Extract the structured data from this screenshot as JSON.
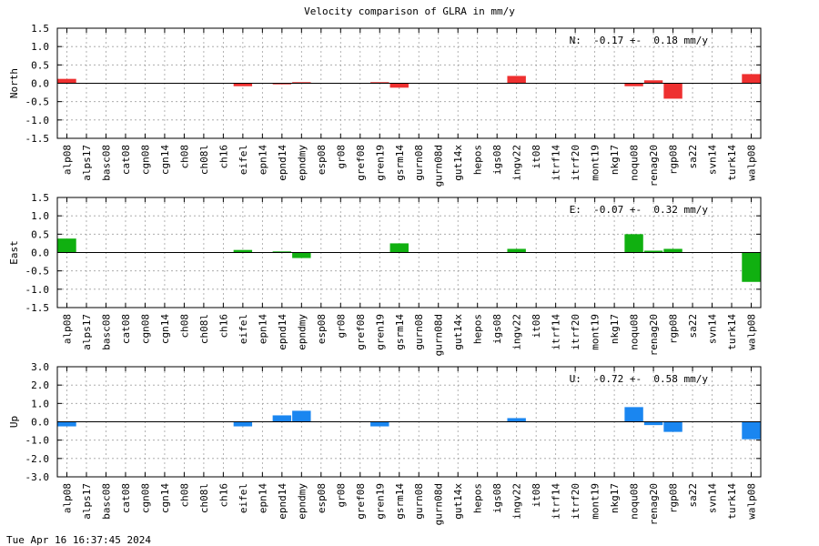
{
  "title": "Velocity comparison of GLRA in mm/y",
  "timestamp": "Tue Apr 16 16:37:45 2024",
  "chart_data": [
    {
      "type": "bar",
      "ylabel": "North",
      "annotation": "N:  -0.17 +-  0.18 mm/y",
      "color": "#ee3030",
      "ylim": [
        -1.5,
        1.5
      ],
      "yticks": [
        -1.5,
        -1.0,
        -0.5,
        0.0,
        0.5,
        1.0,
        1.5
      ],
      "ytick_labels": [
        "-1.5",
        "-1.0",
        "-0.5",
        "0.0",
        "0.5",
        "1.0",
        "1.5"
      ],
      "grid": true,
      "categories": [
        "alp08",
        "alps17",
        "basc08",
        "cat08",
        "cgn08",
        "cgn14",
        "ch08",
        "ch08l",
        "ch16",
        "eifel",
        "epn14",
        "epnd14",
        "epndmy",
        "esp08",
        "gr08",
        "gref08",
        "gren19",
        "gsrm14",
        "gurn08",
        "gurn08d",
        "gut14x",
        "hepos",
        "igs08",
        "ingv22",
        "it08",
        "itrf14",
        "itrf20",
        "mont19",
        "nkg17",
        "noqu08",
        "renag20",
        "rgp08",
        "sa22",
        "svn14",
        "turk14",
        "walp08"
      ],
      "values": [
        0.12,
        0,
        0,
        0,
        0,
        0,
        0,
        0,
        0,
        -0.08,
        0,
        -0.03,
        0.03,
        0,
        0,
        0,
        0.03,
        -0.12,
        0,
        0,
        0,
        0,
        0,
        0.2,
        0,
        0,
        0,
        0,
        0,
        -0.08,
        0.08,
        -0.42,
        0,
        0,
        0,
        0.25
      ]
    },
    {
      "type": "bar",
      "ylabel": "East",
      "annotation": "E:  -0.07 +-  0.32 mm/y",
      "color": "#10b010",
      "ylim": [
        -1.5,
        1.5
      ],
      "yticks": [
        -1.5,
        -1.0,
        -0.5,
        0.0,
        0.5,
        1.0,
        1.5
      ],
      "ytick_labels": [
        "-1.5",
        "-1.0",
        "-0.5",
        "0.0",
        "0.5",
        "1.0",
        "1.5"
      ],
      "grid": true,
      "categories": [
        "alp08",
        "alps17",
        "basc08",
        "cat08",
        "cgn08",
        "cgn14",
        "ch08",
        "ch08l",
        "ch16",
        "eifel",
        "epn14",
        "epnd14",
        "epndmy",
        "esp08",
        "gr08",
        "gref08",
        "gren19",
        "gsrm14",
        "gurn08",
        "gurn08d",
        "gut14x",
        "hepos",
        "igs08",
        "ingv22",
        "it08",
        "itrf14",
        "itrf20",
        "mont19",
        "nkg17",
        "noqu08",
        "renag20",
        "rgp08",
        "sa22",
        "svn14",
        "turk14",
        "walp08"
      ],
      "values": [
        0.38,
        0,
        0,
        0,
        0,
        0,
        0,
        0,
        0,
        0.07,
        0,
        0.03,
        -0.15,
        0,
        0,
        0,
        0,
        0.25,
        0,
        0,
        0,
        0,
        0,
        0.1,
        0,
        0,
        0,
        0,
        0,
        0.5,
        0.05,
        0.1,
        0,
        0,
        0,
        -0.8
      ]
    },
    {
      "type": "bar",
      "ylabel": "Up",
      "annotation": "U:  -0.72 +-  0.58 mm/y",
      "color": "#1a86f0",
      "ylim": [
        -3.0,
        3.0
      ],
      "yticks": [
        -3.0,
        -2.0,
        -1.0,
        0.0,
        1.0,
        2.0,
        3.0
      ],
      "ytick_labels": [
        "-3.0",
        "-2.0",
        "-1.0",
        "0.0",
        "1.0",
        "2.0",
        "3.0"
      ],
      "grid": true,
      "categories": [
        "alp08",
        "alps17",
        "basc08",
        "cat08",
        "cgn08",
        "cgn14",
        "ch08",
        "ch08l",
        "ch16",
        "eifel",
        "epn14",
        "epnd14",
        "epndmy",
        "esp08",
        "gr08",
        "gref08",
        "gren19",
        "gsrm14",
        "gurn08",
        "gurn08d",
        "gut14x",
        "hepos",
        "igs08",
        "ingv22",
        "it08",
        "itrf14",
        "itrf20",
        "mont19",
        "nkg17",
        "noqu08",
        "renag20",
        "rgp08",
        "sa22",
        "svn14",
        "turk14",
        "walp08"
      ],
      "values": [
        -0.25,
        0,
        0,
        0,
        0,
        0,
        0,
        0,
        0,
        -0.25,
        0,
        0.35,
        0.6,
        0,
        0,
        0,
        -0.25,
        0,
        0,
        0,
        0,
        0,
        0,
        0.2,
        0,
        0,
        0,
        0,
        0,
        0.8,
        -0.18,
        -0.55,
        0,
        0,
        0,
        -0.95
      ]
    }
  ]
}
